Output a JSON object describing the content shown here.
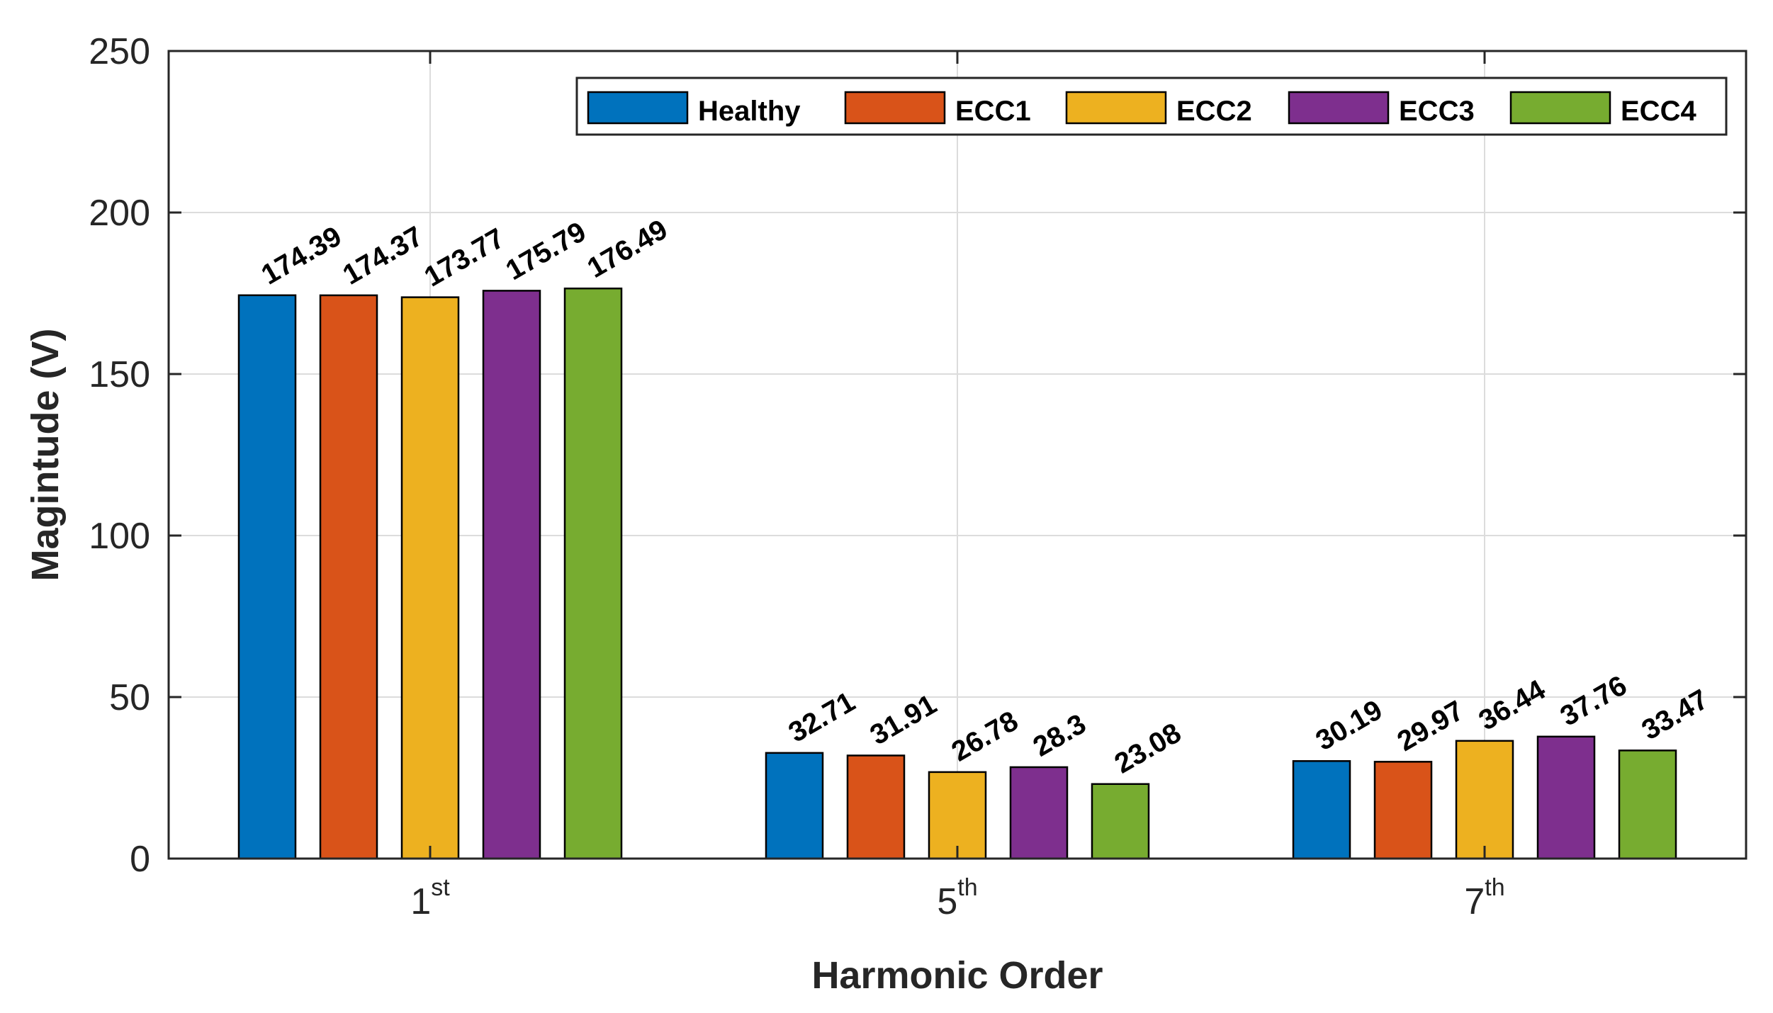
{
  "chart_data": {
    "type": "bar",
    "title": "",
    "xlabel": "Harmonic Order",
    "ylabel": "Magintude (V)",
    "ylim": [
      0,
      250
    ],
    "yticks": [
      0,
      50,
      100,
      150,
      200,
      250
    ],
    "grid": true,
    "legend_position": "top-right",
    "categories": [
      {
        "base": "1",
        "sup": "st"
      },
      {
        "base": "5",
        "sup": "th"
      },
      {
        "base": "7",
        "sup": "th"
      }
    ],
    "series": [
      {
        "name": "Healthy",
        "color": "#0072BD",
        "values": [
          174.39,
          32.71,
          30.19
        ],
        "labels": [
          "174.39",
          "32.71",
          "30.19"
        ]
      },
      {
        "name": "ECC1",
        "color": "#D95319",
        "values": [
          174.37,
          31.91,
          29.97
        ],
        "labels": [
          "174.37",
          "31.91",
          "29.97"
        ]
      },
      {
        "name": "ECC2",
        "color": "#EDB120",
        "values": [
          173.77,
          26.78,
          36.44
        ],
        "labels": [
          "173.77",
          "26.78",
          "36.44"
        ]
      },
      {
        "name": "ECC3",
        "color": "#7E2F8E",
        "values": [
          175.79,
          28.3,
          37.76
        ],
        "labels": [
          "175.79",
          "28.3",
          "37.76"
        ]
      },
      {
        "name": "ECC4",
        "color": "#77AC30",
        "values": [
          176.49,
          23.08,
          33.47
        ],
        "labels": [
          "176.49",
          "23.08",
          "33.47"
        ]
      }
    ]
  }
}
